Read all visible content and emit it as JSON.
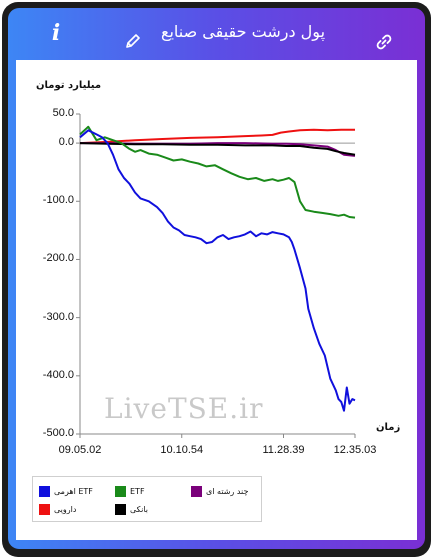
{
  "header": {
    "title": "پول درشت حقیقی صنایع",
    "icons": {
      "info": "info-icon",
      "edit": "pencil-icon",
      "link": "link-icon"
    }
  },
  "watermark": "LiveTSE.ir",
  "colors": {
    "frame": "#1c1c1c",
    "gradient_start": "#3d86f5",
    "gradient_end": "#7a2fd4"
  },
  "chart_data": {
    "type": "line",
    "ylabel": "میلیارد تومان",
    "xlabel": "زمان",
    "ylim": [
      -500,
      50
    ],
    "yticks": [
      "50.0",
      "0.0",
      "-100.0",
      "-200.0",
      "-300.0",
      "-400.0",
      "-500.0"
    ],
    "ytick_values": [
      50,
      0,
      -100,
      -200,
      -300,
      -400,
      -500
    ],
    "x_range": [
      0,
      100
    ],
    "xticks": [
      {
        "label": "09.05.02",
        "x": 0
      },
      {
        "label": "10.10.54",
        "x": 37
      },
      {
        "label": "11.28.39",
        "x": 74
      },
      {
        "label": "12.35.03",
        "x": 100
      }
    ],
    "grid": false,
    "legend_position": "bottom",
    "series": [
      {
        "name": "ETF اهرمی",
        "color": "#1010dd",
        "x": [
          0,
          3,
          6,
          8,
          10,
          12,
          14,
          16,
          18,
          20,
          22,
          25,
          28,
          30,
          32,
          34,
          36,
          38,
          40,
          42,
          44,
          46,
          48,
          50,
          52,
          54,
          56,
          58,
          60,
          62,
          64,
          66,
          68,
          70,
          72,
          74,
          76,
          77,
          78,
          80,
          82,
          83,
          85,
          87,
          89,
          91,
          93,
          94,
          95,
          96,
          97,
          98,
          99,
          100
        ],
        "values": [
          10,
          22,
          15,
          10,
          0,
          -20,
          -45,
          -60,
          -70,
          -85,
          -95,
          -100,
          -110,
          -120,
          -135,
          -145,
          -150,
          -158,
          -160,
          -162,
          -165,
          -172,
          -170,
          -162,
          -158,
          -165,
          -162,
          -160,
          -157,
          -152,
          -160,
          -155,
          -157,
          -153,
          -155,
          -157,
          -162,
          -170,
          -183,
          -215,
          -250,
          -285,
          -318,
          -345,
          -365,
          -405,
          -425,
          -440,
          -445,
          -460,
          -420,
          -448,
          -440,
          -442
        ]
      },
      {
        "name": "ETF",
        "color": "#1a8a1a",
        "x": [
          0,
          3,
          6,
          9,
          12,
          15,
          18,
          20,
          22,
          25,
          28,
          31,
          34,
          37,
          40,
          43,
          46,
          49,
          52,
          55,
          58,
          61,
          64,
          67,
          70,
          72,
          74,
          76,
          78,
          80,
          82,
          85,
          88,
          91,
          94,
          96,
          98,
          100
        ],
        "values": [
          15,
          28,
          5,
          10,
          5,
          0,
          -10,
          -15,
          -12,
          -18,
          -20,
          -25,
          -30,
          -28,
          -32,
          -35,
          -40,
          -38,
          -45,
          -52,
          -58,
          -62,
          -60,
          -65,
          -62,
          -65,
          -63,
          -60,
          -67,
          -100,
          -115,
          -118,
          -120,
          -122,
          -125,
          -123,
          -127,
          -128
        ]
      },
      {
        "name": "چند رشته ای",
        "color": "#7a007a",
        "x": [
          0,
          10,
          20,
          30,
          40,
          50,
          60,
          70,
          75,
          80,
          85,
          90,
          93,
          96,
          100
        ],
        "values": [
          0,
          0,
          -1,
          -1,
          -1,
          0,
          0,
          -1,
          -1,
          -2,
          -4,
          -6,
          -12,
          -20,
          -22
        ]
      },
      {
        "name": "دارویی",
        "color": "#ee1111",
        "x": [
          0,
          10,
          20,
          30,
          40,
          50,
          60,
          66,
          70,
          73,
          76,
          80,
          85,
          90,
          95,
          100
        ],
        "values": [
          0,
          2,
          5,
          7,
          9,
          10,
          12,
          13,
          14,
          18,
          20,
          22,
          23,
          22,
          23,
          23
        ]
      },
      {
        "name": "بانکی",
        "color": "#000000",
        "x": [
          0,
          10,
          20,
          30,
          40,
          50,
          60,
          70,
          75,
          80,
          85,
          90,
          93,
          96,
          100
        ],
        "values": [
          0,
          -1,
          -2,
          -2,
          -3,
          -3,
          -4,
          -4,
          -5,
          -5,
          -8,
          -10,
          -14,
          -17,
          -20
        ]
      }
    ]
  }
}
